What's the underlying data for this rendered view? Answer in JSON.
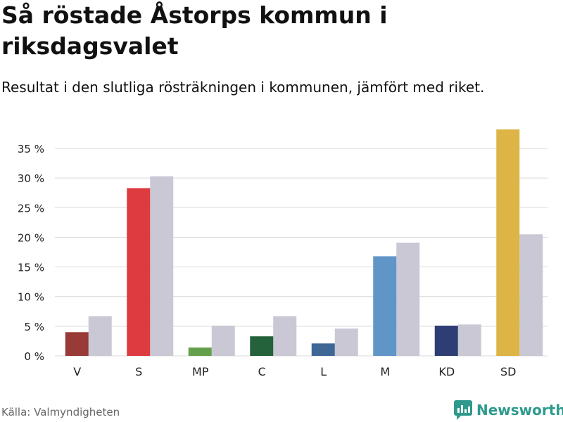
{
  "title": "Så röstade Åstorps kommun i riksdagsvalet",
  "subtitle": "Resultat i den slutliga rösträkningen i kommunen, jämfört med riket.",
  "source": "Källa: Valmyndigheten",
  "brand": {
    "name": "Newsworthy",
    "icon": "newsworthy-logo-icon",
    "color": "#2e9a8d"
  },
  "chart_data": {
    "type": "bar",
    "categories": [
      "V",
      "S",
      "MP",
      "C",
      "L",
      "M",
      "KD",
      "SD"
    ],
    "series": [
      {
        "values": [
          4.0,
          28.3,
          1.4,
          3.3,
          2.1,
          16.8,
          5.1,
          38.2
        ]
      },
      {
        "values": [
          6.7,
          30.3,
          5.1,
          6.7,
          4.6,
          19.1,
          5.3,
          20.5
        ]
      }
    ],
    "bar_colors": [
      "#983a37",
      "#dd3b3f",
      "#64a04b",
      "#23623a",
      "#3e6796",
      "#6095c7",
      "#2e3d74",
      "#ddb546"
    ],
    "comparison_color": "#c9c8d4",
    "y_ticks": [
      0,
      5,
      10,
      15,
      20,
      25,
      30,
      35
    ],
    "y_tick_labels": [
      "0 %",
      "5 %",
      "10 %",
      "15 %",
      "20 %",
      "25 %",
      "30 %",
      "35 %"
    ],
    "ylim": [
      0,
      38.2
    ],
    "grid": true
  }
}
